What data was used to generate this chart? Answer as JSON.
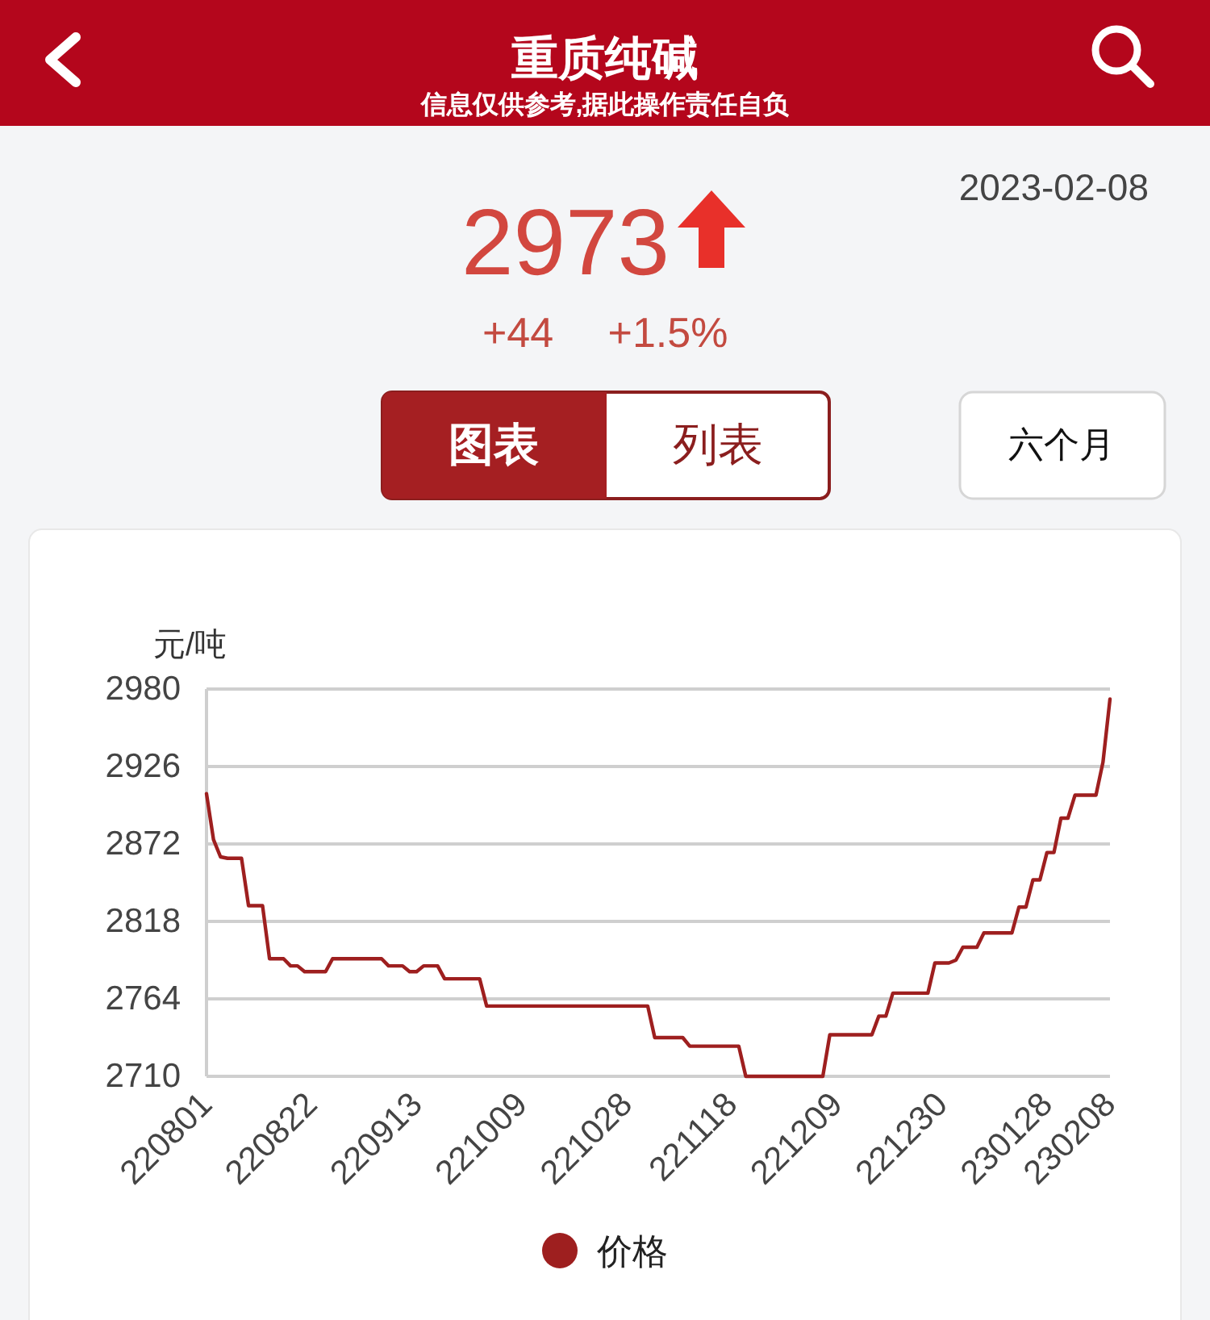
{
  "chart_data": {
    "type": "line",
    "title": "重质纯碱",
    "subtitle": "信息仅供参考,据此操作责任自负",
    "ylabel": "元/吨",
    "annotations": [
      "2023-02-08",
      "2973",
      "+44",
      "+1.5%",
      "图表",
      "列表",
      "六个月"
    ],
    "categories": [
      "220801",
      null,
      null,
      null,
      null,
      null,
      null,
      null,
      null,
      null,
      null,
      null,
      null,
      null,
      null,
      "220822",
      null,
      null,
      null,
      null,
      null,
      null,
      null,
      null,
      null,
      null,
      null,
      null,
      null,
      null,
      "220913",
      null,
      null,
      null,
      null,
      null,
      null,
      null,
      null,
      null,
      null,
      null,
      null,
      null,
      null,
      "221009",
      null,
      null,
      null,
      null,
      null,
      null,
      null,
      null,
      null,
      null,
      null,
      null,
      null,
      null,
      "221028",
      null,
      null,
      null,
      null,
      null,
      null,
      null,
      null,
      null,
      null,
      null,
      null,
      null,
      null,
      "221118",
      null,
      null,
      null,
      null,
      null,
      null,
      null,
      null,
      null,
      null,
      null,
      null,
      null,
      null,
      "221209",
      null,
      null,
      null,
      null,
      null,
      null,
      null,
      null,
      null,
      null,
      null,
      null,
      null,
      null,
      "221230",
      null,
      null,
      null,
      null,
      null,
      null,
      null,
      null,
      null,
      null,
      null,
      null,
      null,
      null,
      "230128",
      null,
      null,
      null,
      null,
      null,
      null,
      null,
      null,
      "230208"
    ],
    "series": [
      {
        "name": "价格",
        "color": "#9e1f1f",
        "values": [
          2907,
          2875,
          2863,
          2862,
          2862,
          2862,
          2829,
          2829,
          2829,
          2792,
          2792,
          2792,
          2787,
          2787,
          2783,
          2783,
          2783,
          2783,
          2792,
          2792,
          2792,
          2792,
          2792,
          2792,
          2792,
          2792,
          2787,
          2787,
          2787,
          2783,
          2783,
          2787,
          2787,
          2787,
          2778,
          2778,
          2778,
          2778,
          2778,
          2778,
          2759,
          2759,
          2759,
          2759,
          2759,
          2759,
          2759,
          2759,
          2759,
          2759,
          2759,
          2759,
          2759,
          2759,
          2759,
          2759,
          2759,
          2759,
          2759,
          2759,
          2759,
          2759,
          2759,
          2759,
          2737,
          2737,
          2737,
          2737,
          2737,
          2731,
          2731,
          2731,
          2731,
          2731,
          2731,
          2731,
          2731,
          2710,
          2710,
          2710,
          2710,
          2710,
          2710,
          2710,
          2710,
          2710,
          2710,
          2710,
          2710,
          2739,
          2739,
          2739,
          2739,
          2739,
          2739,
          2739,
          2752,
          2752,
          2768,
          2768,
          2768,
          2768,
          2768,
          2768,
          2789,
          2789,
          2789,
          2791,
          2800,
          2800,
          2800,
          2810,
          2810,
          2810,
          2810,
          2810,
          2828,
          2828,
          2847,
          2847,
          2866,
          2866,
          2890,
          2890,
          2906,
          2906,
          2906,
          2906,
          2929,
          2973
        ]
      }
    ],
    "ylim": [
      2710,
      2980
    ],
    "yticks": [
      2710,
      2764,
      2818,
      2872,
      2926,
      2980
    ],
    "grid": "y",
    "legend": "bottom"
  }
}
